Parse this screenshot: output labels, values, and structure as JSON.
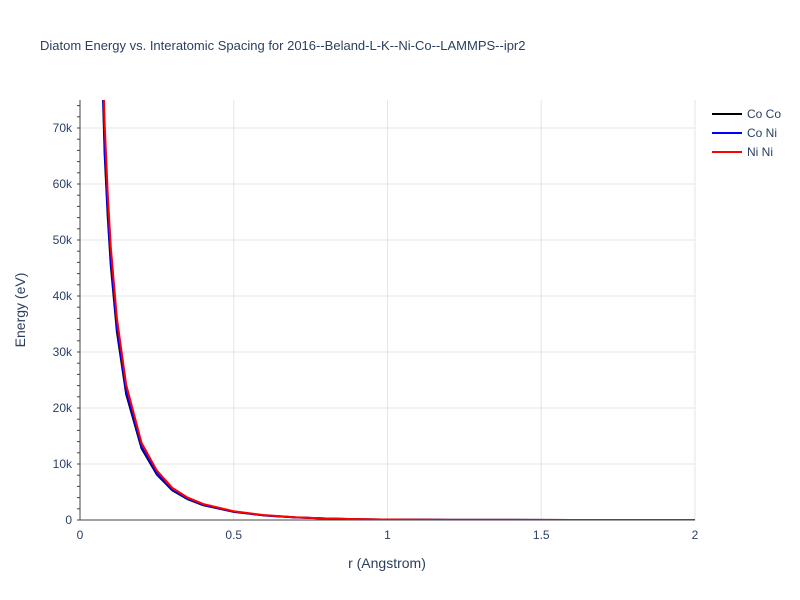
{
  "chart_data": {
    "type": "line",
    "title": "Diatom Energy vs. Interatomic Spacing for 2016--Beland-L-K--Ni-Co--LAMMPS--ipr2",
    "xlabel": "r (Angstrom)",
    "ylabel": "Energy (eV)",
    "xlim": [
      0,
      2
    ],
    "ylim": [
      0,
      75000
    ],
    "x_ticks": [
      {
        "value": 0,
        "label": "0"
      },
      {
        "value": 0.5,
        "label": "0.5"
      },
      {
        "value": 1,
        "label": "1"
      },
      {
        "value": 1.5,
        "label": "1.5"
      },
      {
        "value": 2,
        "label": "2"
      }
    ],
    "y_ticks": [
      {
        "value": 0,
        "label": "0"
      },
      {
        "value": 10000,
        "label": "10k"
      },
      {
        "value": 20000,
        "label": "20k"
      },
      {
        "value": 30000,
        "label": "30k"
      },
      {
        "value": 40000,
        "label": "40k"
      },
      {
        "value": 50000,
        "label": "50k"
      },
      {
        "value": 60000,
        "label": "60k"
      },
      {
        "value": 70000,
        "label": "70k"
      }
    ],
    "grid": true,
    "legend_position": "top-right",
    "series": [
      {
        "name": "Co Co",
        "color": "#000000",
        "x": [
          0.075,
          0.08,
          0.09,
          0.1,
          0.12,
          0.15,
          0.2,
          0.25,
          0.3,
          0.35,
          0.4,
          0.5,
          0.6,
          0.7,
          0.8,
          0.9,
          1.0,
          1.2,
          1.4,
          1.6,
          1.8,
          2.0
        ],
        "y": [
          75000,
          65500,
          54300,
          45500,
          33600,
          22500,
          12800,
          8100,
          5300,
          3700,
          2650,
          1450,
          800,
          460,
          260,
          140,
          80,
          30,
          15,
          8,
          4,
          2
        ]
      },
      {
        "name": "Co Ni",
        "color": "#0000ff",
        "x": [
          0.076,
          0.08,
          0.09,
          0.1,
          0.12,
          0.15,
          0.2,
          0.25,
          0.3,
          0.35,
          0.4,
          0.5,
          0.6,
          0.7,
          0.8,
          0.9,
          1.0,
          1.2,
          1.4,
          1.6,
          1.8,
          2.0
        ],
        "y": [
          75000,
          66800,
          55300,
          46400,
          34300,
          23000,
          13100,
          8300,
          5450,
          3800,
          2720,
          1490,
          820,
          470,
          265,
          145,
          82,
          31,
          15,
          8,
          4,
          2
        ]
      },
      {
        "name": "Ni Ni",
        "color": "#ff0000",
        "x": [
          0.078,
          0.08,
          0.09,
          0.1,
          0.12,
          0.15,
          0.2,
          0.25,
          0.3,
          0.35,
          0.4,
          0.5,
          0.6,
          0.7,
          0.8,
          0.9,
          1.0,
          1.2,
          1.4,
          1.6,
          1.8,
          2.0
        ],
        "y": [
          75000,
          71000,
          58500,
          48800,
          36000,
          24200,
          13800,
          8800,
          5750,
          4000,
          2860,
          1560,
          860,
          490,
          275,
          150,
          85,
          32,
          16,
          8,
          4,
          2
        ]
      }
    ]
  }
}
